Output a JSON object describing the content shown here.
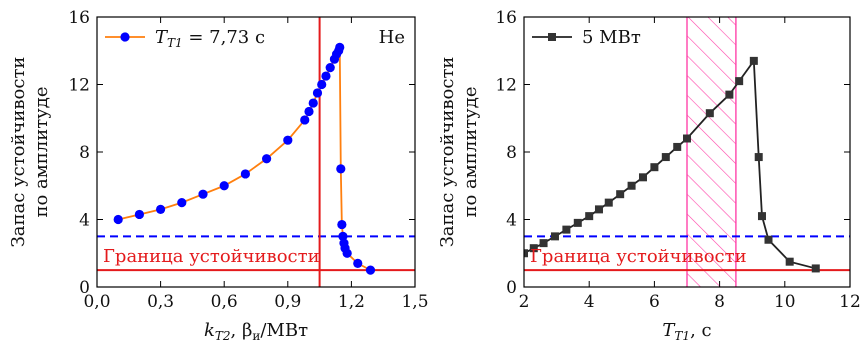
{
  "chart_data": [
    {
      "type": "line",
      "ylabel": "Запас устойчивости по амплитуде",
      "ylabel_lines": [
        "Запас устойчивости",
        "по амплитуде"
      ],
      "xlabel": "k_T2, β_и/МВт",
      "xlabel_parts": {
        "base": "k",
        "sub": "T2",
        "rest": ", β",
        "rest_sub": "и",
        "tail": "/МВт"
      },
      "xlim": [
        0.0,
        1.5
      ],
      "ylim": [
        0,
        16
      ],
      "x_ticks": [
        0.0,
        0.3,
        0.6,
        0.9,
        1.2,
        1.5
      ],
      "x_tick_labels": [
        "0,0",
        "0,3",
        "0,6",
        "0,9",
        "1,2",
        "1,5"
      ],
      "y_ticks": [
        0,
        4,
        8,
        12,
        16
      ],
      "y_tick_labels": [
        "0",
        "4",
        "8",
        "12",
        "16"
      ],
      "legend": {
        "position": "top-left",
        "label_base": "T",
        "label_sub": "T1",
        "label_rest": " = 7,73 с"
      },
      "annotation": "Не",
      "series": [
        {
          "name": "T_T1 = 7,73 с",
          "line_color": "#ff7f0e",
          "marker_color": "#0000ff",
          "marker": "circle",
          "x": [
            0.1,
            0.2,
            0.3,
            0.4,
            0.5,
            0.6,
            0.7,
            0.8,
            0.9,
            0.98,
            1.0,
            1.02,
            1.04,
            1.06,
            1.08,
            1.1,
            1.12,
            1.13,
            1.14,
            1.145,
            1.15,
            1.155,
            1.16,
            1.165,
            1.17,
            1.18,
            1.23,
            1.29
          ],
          "y": [
            4.0,
            4.3,
            4.6,
            5.0,
            5.5,
            6.0,
            6.7,
            7.6,
            8.7,
            9.9,
            10.4,
            10.9,
            11.5,
            12.0,
            12.5,
            13.0,
            13.5,
            13.8,
            14.0,
            14.2,
            7.0,
            3.7,
            3.0,
            2.6,
            2.3,
            2.0,
            1.4,
            1.0
          ]
        }
      ],
      "reference_lines": [
        {
          "orientation": "horizontal",
          "y": 3.0,
          "style": "dashed",
          "color": "#0000ff"
        },
        {
          "orientation": "horizontal",
          "y": 1.0,
          "style": "solid",
          "color": "#e41a1c",
          "label": "Граница устойчивости"
        },
        {
          "orientation": "vertical",
          "x": 1.05,
          "style": "solid",
          "color": "#e41a1c"
        }
      ]
    },
    {
      "type": "line",
      "ylabel": "Запас устойчивости по амплитуде",
      "ylabel_lines": [
        "Запас устойчивости",
        "по амплитуде"
      ],
      "xlabel": "T_T1, с",
      "xlabel_parts": {
        "base": "T",
        "sub": "T1",
        "tail": ", с"
      },
      "xlim": [
        2,
        12
      ],
      "ylim": [
        0,
        16
      ],
      "x_ticks": [
        2,
        4,
        6,
        8,
        10,
        12
      ],
      "x_tick_labels": [
        "2",
        "4",
        "6",
        "8",
        "10",
        "12"
      ],
      "y_ticks": [
        0,
        4,
        8,
        12,
        16
      ],
      "y_tick_labels": [
        "0",
        "4",
        "8",
        "12",
        "16"
      ],
      "legend": {
        "position": "top-left",
        "label": "5 МВт"
      },
      "series": [
        {
          "name": "5 МВт",
          "line_color": "#222222",
          "marker_color": "#333333",
          "marker": "square",
          "x": [
            2.0,
            2.3,
            2.6,
            2.95,
            3.3,
            3.65,
            4.0,
            4.3,
            4.6,
            4.95,
            5.3,
            5.65,
            6.0,
            6.35,
            6.7,
            7.0,
            7.7,
            8.3,
            8.6,
            9.05,
            9.2,
            9.3,
            9.5,
            10.15,
            10.95
          ],
          "y": [
            2.0,
            2.3,
            2.6,
            3.0,
            3.4,
            3.8,
            4.2,
            4.6,
            5.0,
            5.5,
            6.0,
            6.5,
            7.1,
            7.7,
            8.3,
            8.8,
            10.3,
            11.4,
            12.2,
            13.4,
            7.7,
            4.2,
            2.8,
            1.5,
            1.1
          ]
        }
      ],
      "reference_lines": [
        {
          "orientation": "horizontal",
          "y": 3.0,
          "style": "dashed",
          "color": "#0000ff"
        },
        {
          "orientation": "horizontal",
          "y": 1.0,
          "style": "solid",
          "color": "#e41a1c",
          "label": "Граница устойчивости"
        }
      ],
      "shaded_regions": [
        {
          "x_start": 7.0,
          "x_end": 8.5,
          "pattern": "hatch",
          "color": "#ff44aa"
        }
      ]
    }
  ]
}
